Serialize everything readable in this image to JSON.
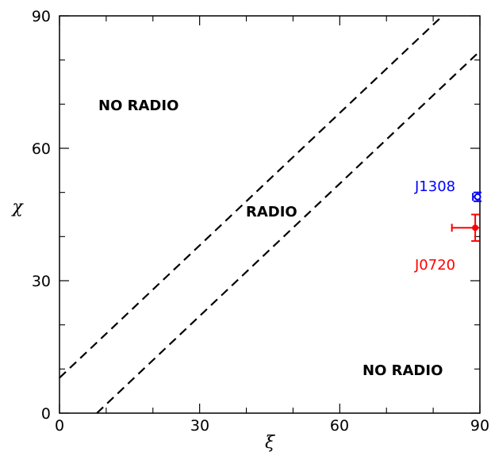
{
  "chart_data": {
    "type": "scatter",
    "xlabel": "ξ",
    "ylabel": "χ",
    "xlim": [
      0,
      90
    ],
    "ylim": [
      0,
      90
    ],
    "xticks": [
      "0",
      "30",
      "60",
      "90"
    ],
    "yticks": [
      "0",
      "30",
      "60",
      "90"
    ],
    "lines": [
      {
        "style": "dashed",
        "color": "#000000",
        "x": [
          0,
          90
        ],
        "y": [
          8,
          98
        ]
      },
      {
        "style": "dashed",
        "color": "#000000",
        "x": [
          8,
          90
        ],
        "y": [
          0,
          82
        ]
      }
    ],
    "region_labels": [
      "NO RADIO",
      "RADIO",
      "NO RADIO"
    ],
    "points": [
      {
        "name": "J1308",
        "color": "#0000ff",
        "x": 89.5,
        "y": 49,
        "xerr": [
          1,
          0.5
        ],
        "yerr": [
          1,
          1
        ],
        "marker": "open-circle"
      },
      {
        "name": "J0720",
        "color": "#ff0000",
        "x": 89,
        "y": 42,
        "xerr": [
          5,
          1
        ],
        "yerr": [
          3,
          3
        ],
        "marker": "filled-circle"
      }
    ]
  }
}
